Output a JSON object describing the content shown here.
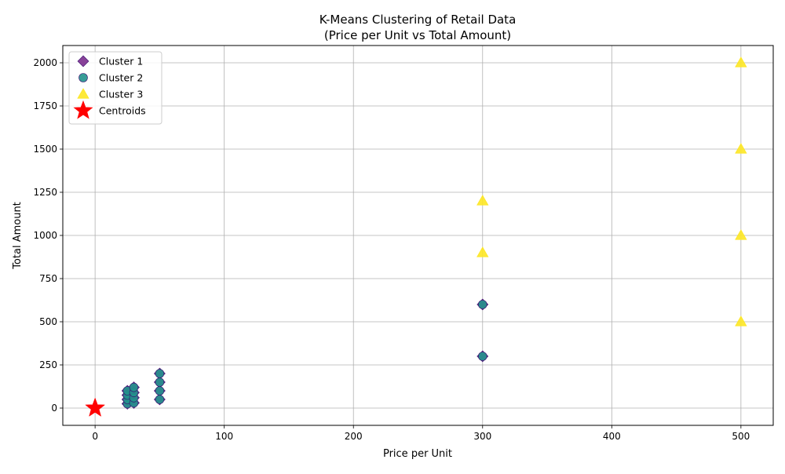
{
  "chart_data": {
    "type": "scatter",
    "title_line1": "K-Means Clustering of Retail Data",
    "title_line2": "(Price per Unit vs Total Amount)",
    "xlabel": "Price per Unit",
    "ylabel": "Total Amount",
    "xlim": [
      -25,
      525
    ],
    "ylim": [
      -100,
      2100
    ],
    "xticks": [
      0,
      100,
      200,
      300,
      400,
      500
    ],
    "yticks": [
      0,
      250,
      500,
      750,
      1000,
      1250,
      1500,
      1750,
      2000
    ],
    "grid": true,
    "legend_position": "top-left",
    "series": [
      {
        "name": "Cluster 1",
        "marker": "diamond",
        "color": "#7b2d8e",
        "points": [
          [
            25,
            25
          ],
          [
            25,
            50
          ],
          [
            25,
            75
          ],
          [
            25,
            100
          ],
          [
            30,
            30
          ],
          [
            30,
            60
          ],
          [
            30,
            90
          ],
          [
            30,
            120
          ],
          [
            50,
            50
          ],
          [
            50,
            100
          ],
          [
            50,
            150
          ],
          [
            50,
            200
          ],
          [
            300,
            300
          ],
          [
            300,
            600
          ]
        ]
      },
      {
        "name": "Cluster 2",
        "marker": "circle",
        "color": "#21918c",
        "points": [
          [
            25,
            25
          ],
          [
            25,
            50
          ],
          [
            25,
            75
          ],
          [
            25,
            100
          ],
          [
            30,
            30
          ],
          [
            30,
            60
          ],
          [
            30,
            90
          ],
          [
            30,
            120
          ],
          [
            50,
            50
          ],
          [
            50,
            100
          ],
          [
            50,
            150
          ],
          [
            50,
            200
          ],
          [
            300,
            300
          ],
          [
            300,
            600
          ]
        ]
      },
      {
        "name": "Cluster 3",
        "marker": "triangle",
        "color": "#fde725",
        "points": [
          [
            300,
            900
          ],
          [
            300,
            1200
          ],
          [
            500,
            500
          ],
          [
            500,
            1000
          ],
          [
            500,
            1500
          ],
          [
            500,
            2000
          ]
        ]
      },
      {
        "name": "Centroids",
        "marker": "star",
        "color": "#ff0000",
        "points": [
          [
            0,
            0
          ],
          [
            0,
            0
          ],
          [
            0,
            0
          ]
        ]
      }
    ]
  }
}
